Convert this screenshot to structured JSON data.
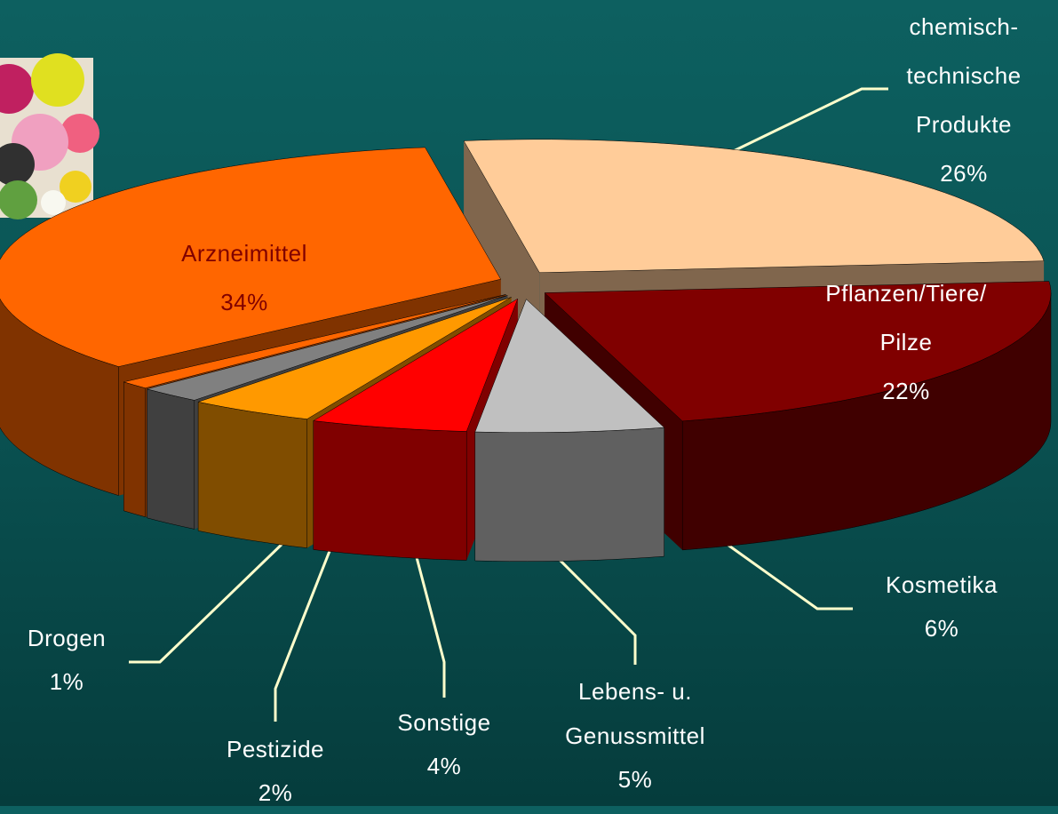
{
  "chart_data": {
    "type": "pie3d",
    "categories": [
      "chemisch-\ntechnische\nProdukte",
      "Pflanzen/Tiere/\nPilze",
      "Kosmetika",
      "Lebens- u.\nGenussmittel",
      "Sonstige",
      "Pestizide",
      "Drogen",
      "Arzneimittel"
    ],
    "values": [
      26,
      22,
      6,
      5,
      4,
      2,
      1,
      34
    ],
    "value_labels": [
      "26%",
      "22%",
      "6%",
      "5%",
      "4%",
      "2%",
      "1%",
      "34%"
    ],
    "colors": [
      "#ffcc99",
      "#800000",
      "#c0c0c0",
      "#ff0000",
      "#ff9900",
      "#808080",
      "#ff6600",
      "#ff6600"
    ]
  }
}
